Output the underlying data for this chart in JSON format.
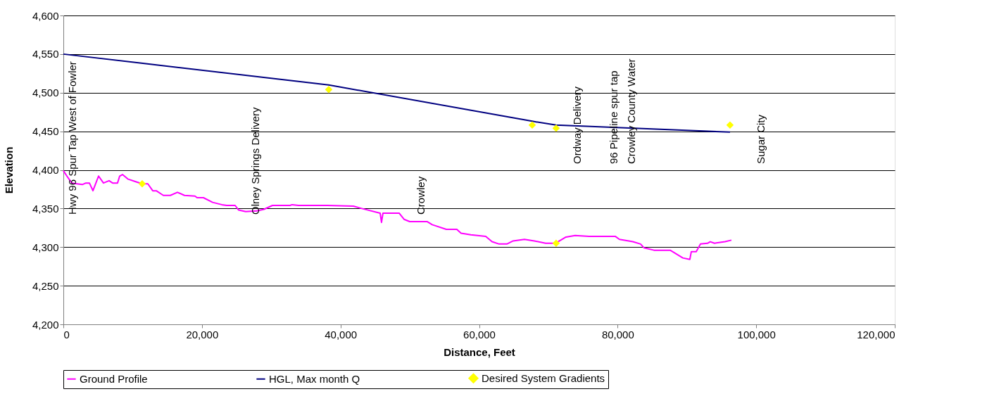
{
  "chart_data": {
    "type": "line",
    "xlabel": "Distance, Feet",
    "ylabel": "Elevation",
    "xlim": [
      0,
      120000
    ],
    "xticks": [
      {
        "value": 0,
        "label": "0"
      },
      {
        "value": 20000,
        "label": "20,000"
      },
      {
        "value": 40000,
        "label": "40,000"
      },
      {
        "value": 60000,
        "label": "60,000"
      },
      {
        "value": 80000,
        "label": "80,000"
      },
      {
        "value": 100000,
        "label": "100,000"
      },
      {
        "value": 120000,
        "label": "120,000"
      }
    ],
    "ylim": [
      4200,
      4600
    ],
    "yticks": [
      {
        "value": 4200,
        "label": "4,200"
      },
      {
        "value": 4250,
        "label": "4,250"
      },
      {
        "value": 4300,
        "label": "4,300"
      },
      {
        "value": 4350,
        "label": "4,350"
      },
      {
        "value": 4400,
        "label": "4,400"
      },
      {
        "value": 4450,
        "label": "4,450"
      },
      {
        "value": 4500,
        "label": "4,500"
      },
      {
        "value": 4550,
        "label": "4,550"
      },
      {
        "value": 4600,
        "label": "4,600"
      }
    ],
    "grid": "y",
    "legend": "bottom",
    "series": [
      {
        "name": "Ground Profile",
        "color": "#ff00ff",
        "x": [
          0,
          508,
          1220,
          1930,
          2740,
          3250,
          3760,
          4270,
          5080,
          5790,
          6600,
          7110,
          7820,
          8130,
          8530,
          9350,
          10360,
          11380,
          12190,
          12900,
          13410,
          14430,
          15440,
          16460,
          17480,
          19000,
          19300,
          20220,
          21540,
          22860,
          23570,
          24790,
          25300,
          26310,
          27940,
          28960,
          30180,
          32720,
          33020,
          33930,
          38100,
          41860,
          43080,
          45720,
          45920,
          46130,
          48460,
          49170,
          49990,
          52530,
          53240,
          55270,
          56790,
          57400,
          58820,
          60960,
          61870,
          62890,
          64010,
          64920,
          66550,
          67970,
          69600,
          71020,
          72540,
          73860,
          75890,
          79650,
          80260,
          82190,
          83310,
          83820,
          85240,
          87580,
          89410,
          90420,
          90630,
          91340,
          91950,
          92970,
          93370,
          93980,
          95500,
          96420
        ],
        "values": [
          4399,
          4392,
          4383,
          4382,
          4381,
          4383,
          4383,
          4373,
          4392,
          4383,
          4386,
          4383,
          4383,
          4392,
          4394,
          4388,
          4385,
          4382,
          4382,
          4373,
          4373,
          4367,
          4367,
          4371,
          4367,
          4366,
          4364,
          4364,
          4358,
          4355,
          4354,
          4354,
          4348,
          4346,
          4347,
          4349,
          4354,
          4354,
          4355,
          4354,
          4354,
          4353,
          4350,
          4344,
          4332,
          4344,
          4344,
          4336,
          4333,
          4333,
          4329,
          4323,
          4323,
          4318,
          4316,
          4314,
          4307,
          4304,
          4304,
          4308,
          4310,
          4308,
          4305,
          4305,
          4313,
          4315,
          4314,
          4314,
          4310,
          4307,
          4304,
          4299,
          4296,
          4296,
          4286,
          4284,
          4294,
          4294,
          4304,
          4305,
          4307,
          4305,
          4307,
          4309
        ]
      },
      {
        "name": "HGL, Max month Q",
        "color": "#000080",
        "x": [
          0,
          11480,
          38300,
          67670,
          71120,
          96220
        ],
        "values": [
          4550,
          4538,
          4510,
          4463,
          4458,
          4449
        ]
      },
      {
        "name": "Desired System Gradients",
        "type": "scatter",
        "marker": "diamond",
        "color": "#ffff00",
        "x": [
          11380,
          38300,
          67670,
          71120,
          71120,
          96220
        ],
        "values": [
          4382,
          4504,
          4458,
          4454,
          4305,
          4458
        ]
      }
    ],
    "annotations": [
      "Hwy 96 Spur Tap West of Fowler",
      "Olney Springs Delivery",
      "Crowley",
      "Ordway Delivery",
      "96 Pipeline spur tap",
      "Crowley County Water",
      "Sugar City"
    ]
  }
}
